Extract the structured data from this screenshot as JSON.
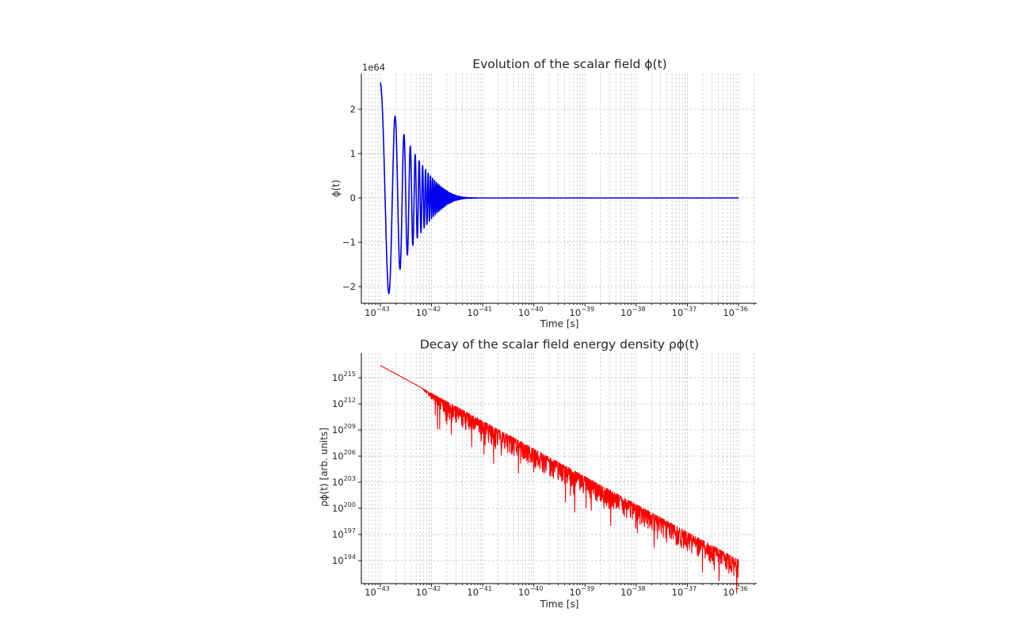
{
  "chart_data": [
    {
      "type": "line",
      "title": "Evolution of the scalar field ϕ(t)",
      "xlabel": "Time [s]",
      "ylabel": "ϕ(t)",
      "y_offset_label": "1e64",
      "xscale": "log",
      "xlim": [
        5e-44,
        1.6e-36
      ],
      "ylim": [
        -2.4,
        2.8
      ],
      "grid": true,
      "x_ticks": [
        -43,
        -42,
        -41,
        -40,
        -39,
        -38,
        -37,
        -36
      ],
      "y_ticks": [
        -2,
        -1,
        0,
        1,
        2
      ],
      "color": "#0000ee",
      "series": [
        {
          "description": "damped oscillation starting near 2.6e64, settling to 0 by ~5e-42 s",
          "x_start": 1e-43,
          "x_end": 1e-36,
          "y_start": 2.6,
          "first_min": -2.15,
          "settled_value": 0
        }
      ]
    },
    {
      "type": "line",
      "title": "Decay of the scalar field energy density ρϕ(t)",
      "xlabel": "Time [s]",
      "ylabel": "ρϕ(t) [arb. units]",
      "xscale": "log",
      "yscale": "log",
      "xlim": [
        5e-44,
        1.6e-36
      ],
      "ylim_log10": [
        191.4,
        217.5
      ],
      "grid": true,
      "x_ticks": [
        -43,
        -42,
        -41,
        -40,
        -39,
        -38,
        -37,
        -36
      ],
      "y_ticks": [
        194,
        197,
        200,
        203,
        206,
        209,
        212,
        215
      ],
      "color": "#ff0000",
      "series": [
        {
          "description": "noisy power-law decay of log10(rho) from ~216.5 to ~193.5",
          "x_start": 1e-43,
          "x_end": 1e-36,
          "log10_y_start": 216.4,
          "log10_y_end": 193.5
        }
      ]
    }
  ]
}
